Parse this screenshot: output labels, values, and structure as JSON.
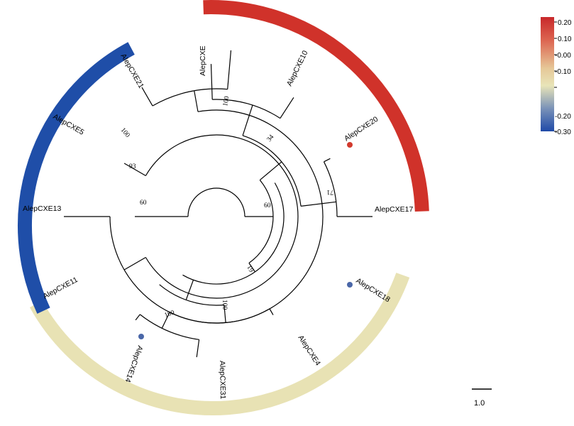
{
  "leaves": [
    {
      "id": "cxe",
      "label": "AlepCXE"
    },
    {
      "id": "cxe10",
      "label": "AlepCXE10"
    },
    {
      "id": "cxe20",
      "label": "AlepCXE20",
      "marker": "#d23a2e"
    },
    {
      "id": "cxe17",
      "label": "AlepCXE17"
    },
    {
      "id": "cxe18",
      "label": "AlepCXE18",
      "marker": "#4a67a8"
    },
    {
      "id": "cxe4",
      "label": "AlepCXE4"
    },
    {
      "id": "cxe31",
      "label": "AlepCXE31"
    },
    {
      "id": "cxe14",
      "label": "AlepCXE14",
      "marker": "#4a67a8"
    },
    {
      "id": "cxe11",
      "label": "AlepCXE11"
    },
    {
      "id": "cxe13",
      "label": "AlepCXE13"
    },
    {
      "id": "cxe5",
      "label": "AlepCXE5"
    },
    {
      "id": "cxe21",
      "label": "AlepCXE21"
    }
  ],
  "bootstrap": [
    "100",
    "34",
    "71",
    "60",
    "61",
    "100",
    "100",
    "100",
    "93",
    "60"
  ],
  "clade_colors": {
    "red": "#d0322a",
    "tan": "#e8e2b4",
    "blue": "#1f4ea8"
  },
  "colorbar": {
    "ticks": [
      "0.20",
      "0.10",
      "-0.00",
      "-0.10",
      "-0.20",
      "-0.30"
    ],
    "colors": [
      "#c8282a",
      "#dc6450",
      "#e6c898",
      "#e8e4b8",
      "#7a92b8",
      "#1f4aa8"
    ]
  },
  "scale_bar": "1.0"
}
